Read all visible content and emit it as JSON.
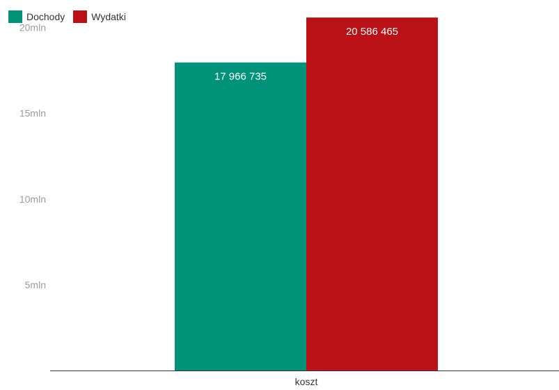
{
  "chart_data": {
    "type": "bar",
    "categories": [
      "koszt"
    ],
    "series": [
      {
        "name": "Dochody",
        "values": [
          17966735
        ],
        "color": "#00937a",
        "label": "17 966 735"
      },
      {
        "name": "Wydatki",
        "values": [
          20586465
        ],
        "color": "#bb1015",
        "label": "20 586 465"
      }
    ],
    "ylim": [
      0,
      21000000
    ],
    "yticks": [
      {
        "value": 5000000,
        "label": "5mln"
      },
      {
        "value": 10000000,
        "label": "10mln"
      },
      {
        "value": 15000000,
        "label": "15mln"
      },
      {
        "value": 20000000,
        "label": "20mln"
      }
    ],
    "grid": false,
    "legend_position": "top-left",
    "title": "",
    "xlabel": "",
    "ylabel": ""
  }
}
